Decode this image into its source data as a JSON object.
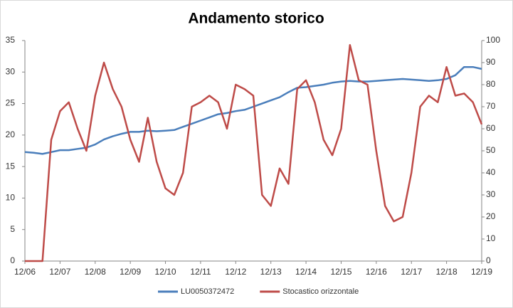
{
  "chart_data": {
    "type": "line",
    "title": "Andamento storico",
    "x": [
      "12/06",
      "03/07",
      "06/07",
      "09/07",
      "12/07",
      "03/08",
      "06/08",
      "09/08",
      "12/08",
      "03/09",
      "06/09",
      "09/09",
      "12/09",
      "03/10",
      "06/10",
      "09/10",
      "12/10",
      "03/11",
      "06/11",
      "09/11",
      "12/11",
      "03/12",
      "06/12",
      "09/12",
      "12/12",
      "03/13",
      "06/13",
      "09/13",
      "12/13",
      "03/14",
      "06/14",
      "09/14",
      "12/14",
      "03/15",
      "06/15",
      "09/15",
      "12/15",
      "03/16",
      "06/16",
      "09/16",
      "12/16",
      "03/17",
      "06/17",
      "09/17",
      "12/17",
      "03/18",
      "06/18",
      "09/18",
      "12/18",
      "03/19",
      "06/19",
      "09/19",
      "12/19"
    ],
    "xticks": [
      "12/06",
      "12/07",
      "12/08",
      "12/09",
      "12/10",
      "12/11",
      "12/12",
      "12/13",
      "12/14",
      "12/15",
      "12/16",
      "12/17",
      "12/18",
      "12/19"
    ],
    "series": [
      {
        "name": "LU0050372472",
        "color": "#4a7ebb",
        "axis": "y",
        "values": [
          17.3,
          17.2,
          17.0,
          17.3,
          17.6,
          17.6,
          17.8,
          18.0,
          18.5,
          19.3,
          19.8,
          20.2,
          20.5,
          20.5,
          20.7,
          20.6,
          20.7,
          20.8,
          21.3,
          21.8,
          22.3,
          22.8,
          23.3,
          23.5,
          23.8,
          24.0,
          24.5,
          25.0,
          25.5,
          26.0,
          26.8,
          27.5,
          27.6,
          27.8,
          28.0,
          28.3,
          28.5,
          28.6,
          28.5,
          28.5,
          28.6,
          28.7,
          28.8,
          28.9,
          28.8,
          28.7,
          28.6,
          28.7,
          28.9,
          29.5,
          30.8,
          30.8,
          30.5
        ]
      },
      {
        "name": "Stocastico orizzontale",
        "color": "#be4b48",
        "axis": "y2",
        "values": [
          0,
          0,
          0,
          55,
          68,
          72,
          60,
          50,
          75,
          90,
          78,
          70,
          55,
          45,
          65,
          45,
          33,
          30,
          40,
          70,
          72,
          75,
          72,
          60,
          80,
          78,
          75,
          30,
          25,
          42,
          35,
          78,
          82,
          72,
          55,
          48,
          60,
          98,
          82,
          80,
          50,
          25,
          18,
          20,
          40,
          70,
          75,
          72,
          88,
          75,
          76,
          72,
          62
        ]
      }
    ],
    "ylim": [
      0,
      35
    ],
    "yticks": [
      0,
      5,
      10,
      15,
      20,
      25,
      30,
      35
    ],
    "y2lim": [
      0,
      100
    ],
    "y2ticks": [
      0,
      10,
      20,
      30,
      40,
      50,
      60,
      70,
      80,
      90,
      100
    ],
    "grid": false,
    "legend": "bottom"
  }
}
